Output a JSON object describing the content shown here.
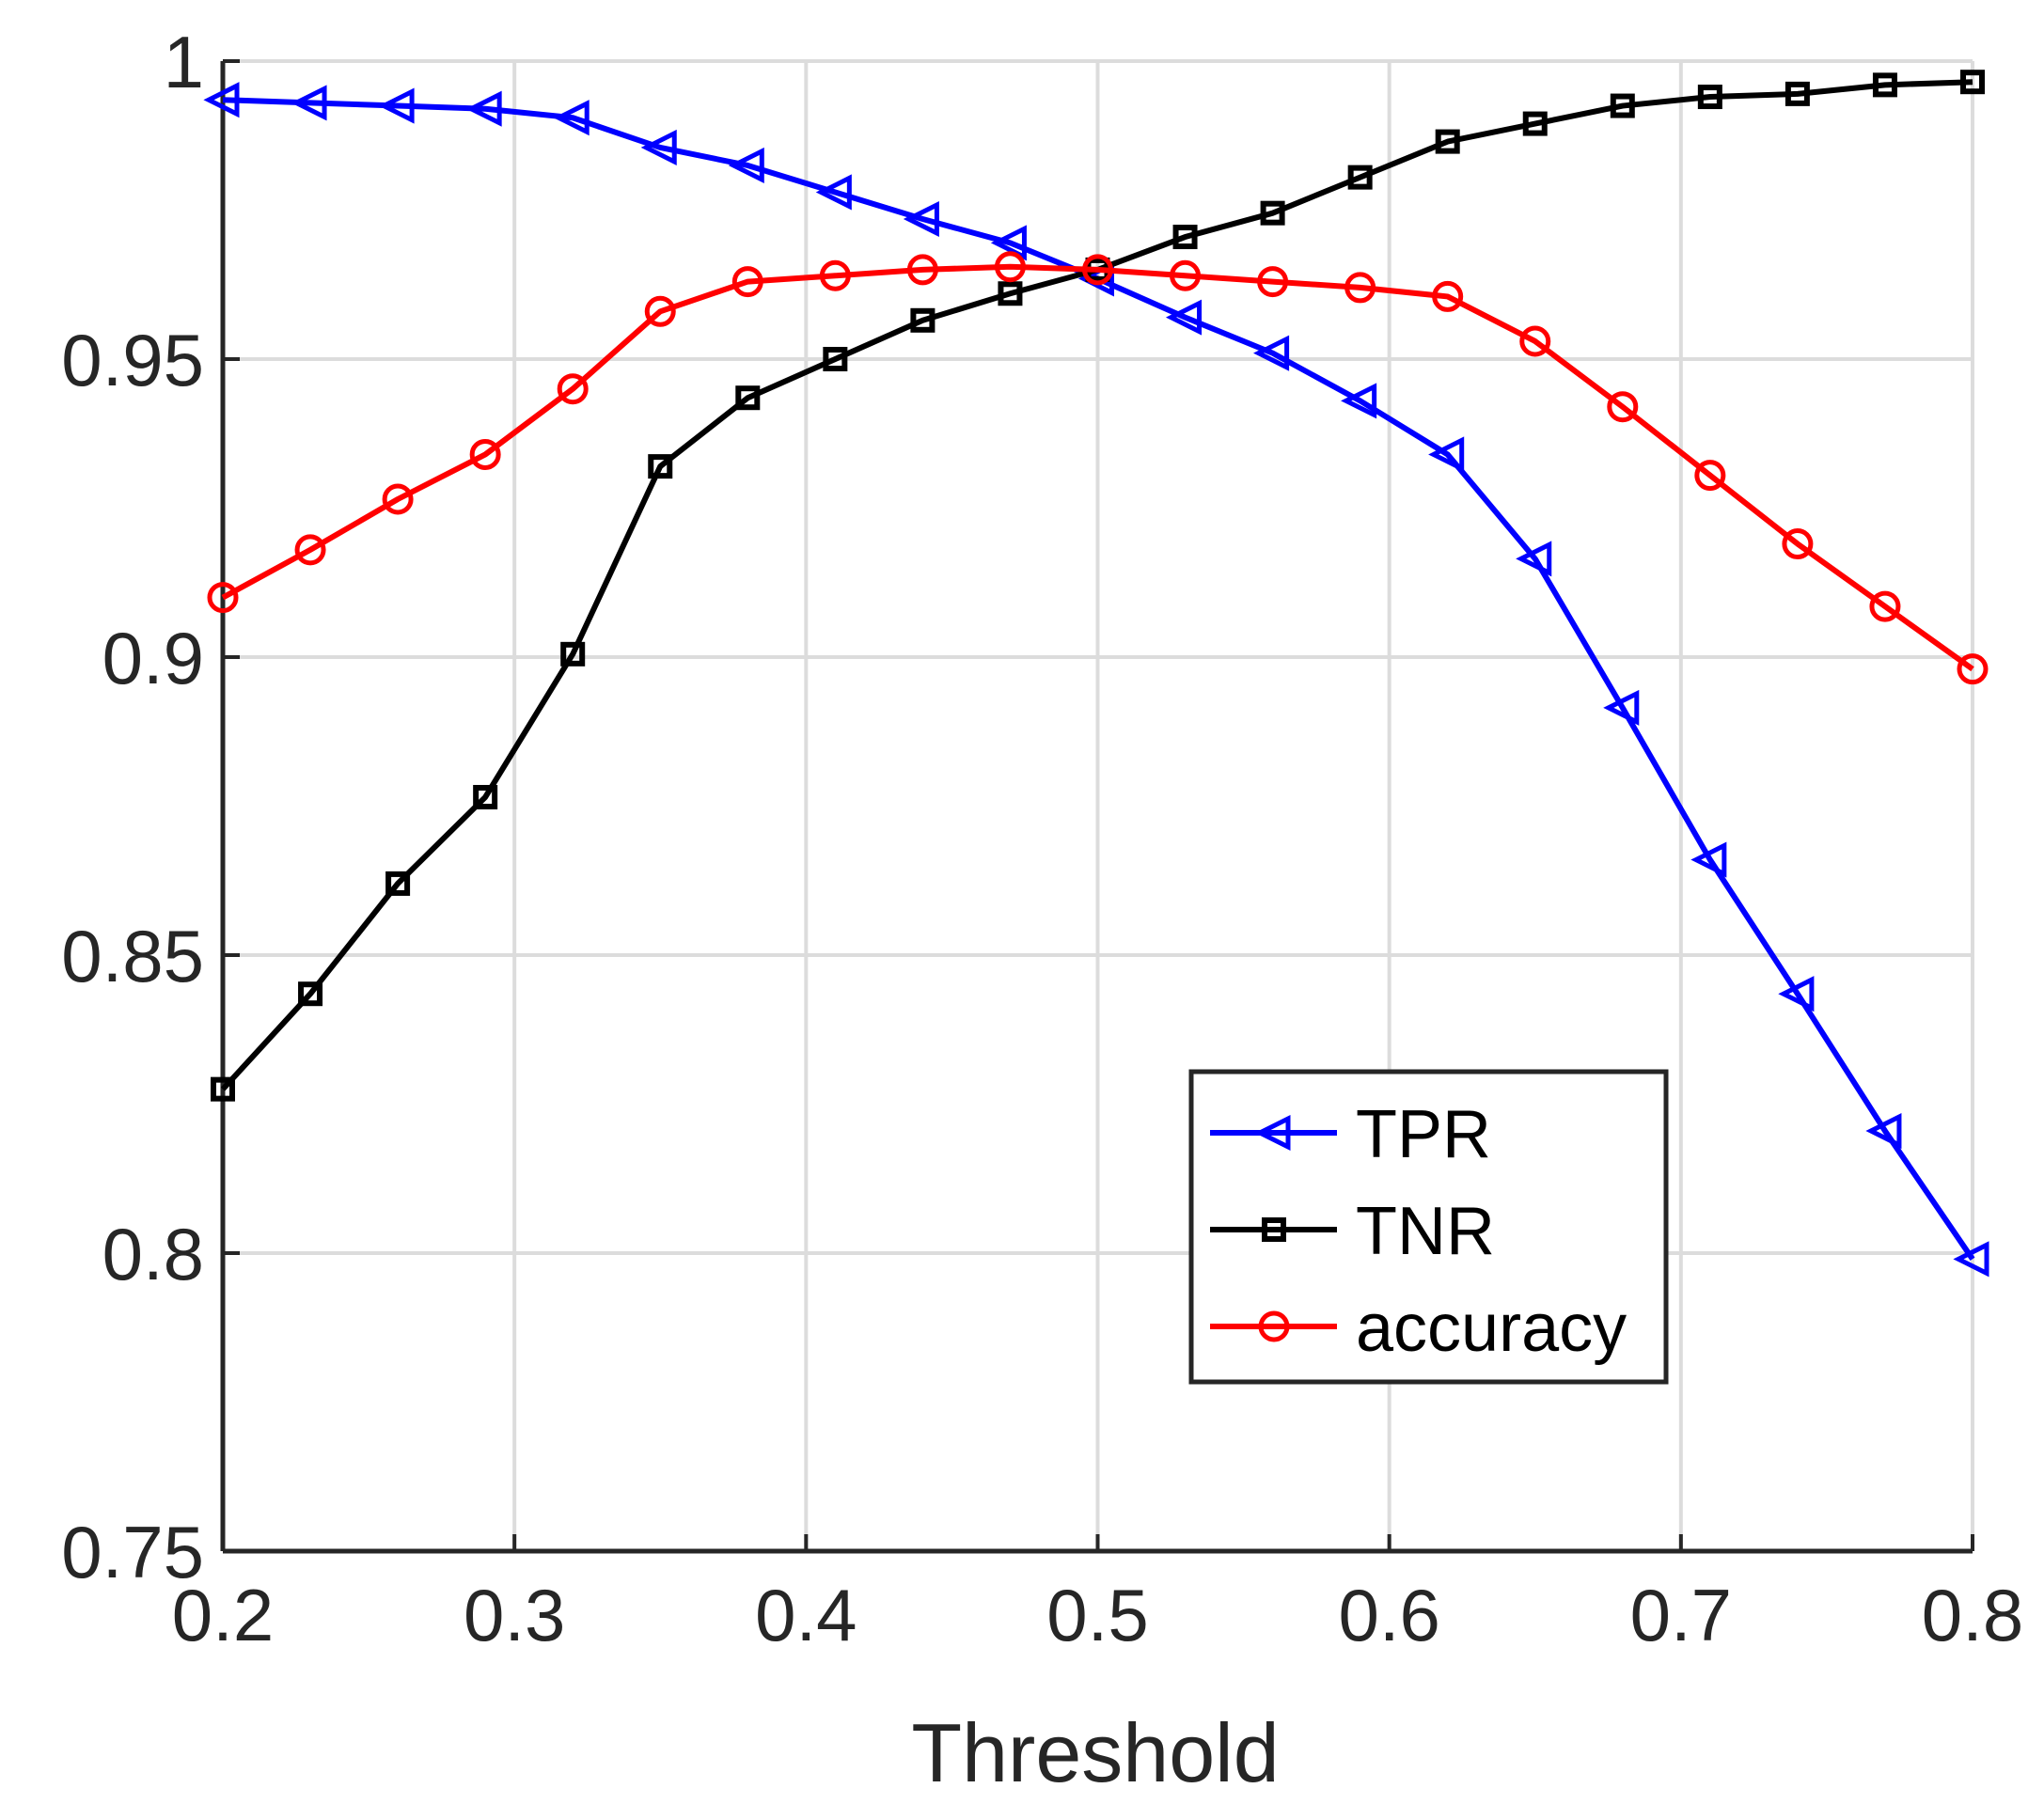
{
  "chart_data": {
    "type": "line",
    "title": "",
    "xlabel": "Threshold",
    "ylabel": "",
    "xlim": [
      0.2,
      0.8
    ],
    "ylim": [
      0.75,
      1.0
    ],
    "grid": true,
    "legend_position": "bottom-right",
    "x_ticks": [
      "0.2",
      "0.3",
      "0.4",
      "0.5",
      "0.6",
      "0.7",
      "0.8"
    ],
    "y_ticks": [
      "0.75",
      "0.8",
      "0.85",
      "0.9",
      "0.95",
      "1"
    ],
    "x": [
      0.2,
      0.23,
      0.26,
      0.29,
      0.32,
      0.35,
      0.38,
      0.41,
      0.44,
      0.47,
      0.5,
      0.53,
      0.56,
      0.59,
      0.62,
      0.65,
      0.68,
      0.71,
      0.74,
      0.77,
      0.8
    ],
    "series": [
      {
        "name": "TPR",
        "color": "#0000ff",
        "marker": "triangle-left",
        "values": [
          0.9935,
          0.993,
          0.9925,
          0.992,
          0.9905,
          0.9855,
          0.9825,
          0.978,
          0.9735,
          0.9695,
          0.9635,
          0.957,
          0.951,
          0.943,
          0.934,
          0.9165,
          0.8915,
          0.866,
          0.8435,
          0.8205,
          0.799
        ]
      },
      {
        "name": "TNR",
        "color": "#000000",
        "marker": "square",
        "values": [
          0.8275,
          0.8435,
          0.862,
          0.8765,
          0.9005,
          0.932,
          0.9435,
          0.95,
          0.9565,
          0.961,
          0.965,
          0.9705,
          0.9745,
          0.9805,
          0.9865,
          0.9895,
          0.9925,
          0.994,
          0.9945,
          0.996,
          0.9965
        ]
      },
      {
        "name": "accuracy",
        "color": "#ff0000",
        "marker": "circle",
        "values": [
          0.91,
          0.918,
          0.9265,
          0.934,
          0.945,
          0.958,
          0.963,
          0.964,
          0.965,
          0.9655,
          0.965,
          0.964,
          0.963,
          0.962,
          0.9605,
          0.953,
          0.942,
          0.9305,
          0.919,
          0.9085,
          0.898
        ]
      }
    ]
  }
}
